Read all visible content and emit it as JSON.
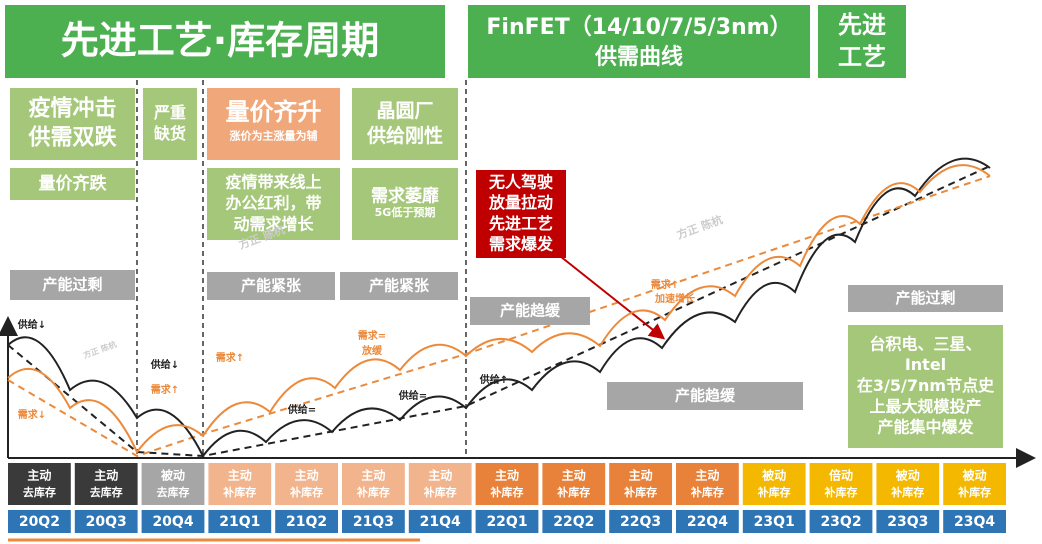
{
  "header": {
    "title": "先进工艺·库存周期",
    "finfet": [
      "FinFET（14/10/7/5/3nm）",
      "供需曲线"
    ],
    "right": [
      "先进",
      "工艺"
    ]
  },
  "boxes": [
    {
      "lines": [
        "疫情冲击",
        "供需双跌"
      ]
    },
    {
      "lines": [
        "严重",
        "缺货"
      ]
    },
    {
      "lines": [
        "量价齐升"
      ],
      "sub": "涨价为主涨量为辅"
    },
    {
      "lines": [
        "晶圆厂",
        "供给刚性"
      ]
    },
    {
      "lines": [
        "量价齐跌"
      ]
    },
    {
      "lines": [
        "疫情带来线上",
        "办公红利，带",
        "动需求增长"
      ]
    },
    {
      "lines": [
        "需求萎靡"
      ],
      "sub": "5G低于预期"
    },
    {
      "lines": [
        "无人驾驶",
        "放量拉动",
        "先进工艺",
        "需求爆发"
      ]
    },
    {
      "lines": [
        "台积电、三星、",
        "Intel",
        "在3/5/7nm节点史",
        "上最大规模投产",
        "产能集中爆发"
      ]
    }
  ],
  "capacity_labels": [
    "产能过剩",
    "产能紧张",
    "产能紧张",
    "产能趋缓",
    "产能趋缓",
    "产能过剩"
  ],
  "curve_labels": [
    "供给↓",
    "需求↓",
    "供给↓",
    "需求↑",
    "需求↑",
    "需求=",
    "放缓",
    "供给=",
    "供给=",
    "供给↑",
    "需求↑",
    "加速增长"
  ],
  "watermarks": [
    "方正 陈杭",
    "方正 陈杭",
    "方正 陈杭"
  ],
  "phases": [
    [
      "主动",
      "去库存"
    ],
    [
      "主动",
      "去库存"
    ],
    [
      "被动",
      "去库存"
    ],
    [
      "主动",
      "补库存"
    ],
    [
      "主动",
      "补库存"
    ],
    [
      "主动",
      "补库存"
    ],
    [
      "主动",
      "补库存"
    ],
    [
      "主动",
      "补库存"
    ],
    [
      "主动",
      "补库存"
    ],
    [
      "主动",
      "补库存"
    ],
    [
      "主动",
      "补库存"
    ],
    [
      "被动",
      "补库存"
    ],
    [
      "倍动",
      "补库存"
    ],
    [
      "被动",
      "补库存"
    ],
    [
      "被动",
      "补库存"
    ]
  ],
  "quarters": [
    "20Q2",
    "20Q3",
    "20Q4",
    "21Q1",
    "21Q2",
    "21Q3",
    "21Q4",
    "22Q1",
    "22Q2",
    "22Q3",
    "22Q4",
    "23Q1",
    "23Q2",
    "23Q3",
    "23Q4"
  ]
}
